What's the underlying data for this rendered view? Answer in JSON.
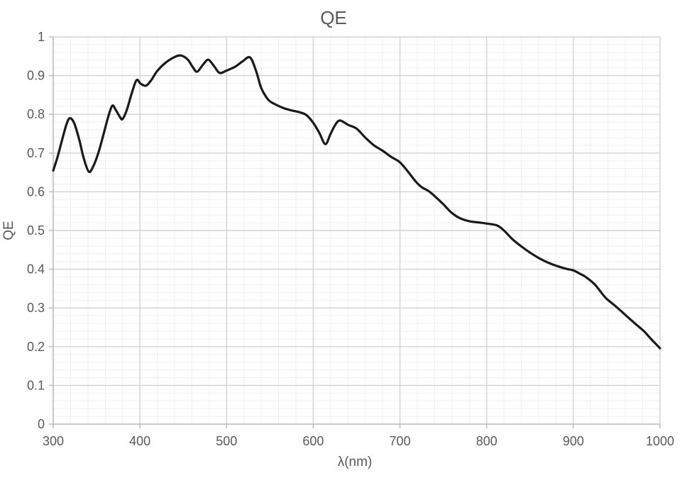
{
  "chart": {
    "title": "QE",
    "x_axis_title": "λ(nm)",
    "y_axis_title": "QE"
  },
  "style": {
    "background": "#ffffff",
    "text_color": "#595959",
    "axis_color": "#bfbfbf",
    "grid_major_color": "#d2d2d2",
    "grid_minor_color": "#efefef",
    "line_color": "#1a1a1a",
    "line_width": 3.2
  },
  "chart_data": {
    "type": "line",
    "title": "QE",
    "xlabel": "λ(nm)",
    "ylabel": "QE",
    "xlim": [
      300,
      1000
    ],
    "ylim": [
      0,
      1
    ],
    "x_major_step": 100,
    "x_minor_step": 20,
    "y_major_step": 0.1,
    "y_minor_step": 0.02,
    "grid": "major+minor",
    "legend": "none",
    "x_tick_labels": [
      "300",
      "400",
      "500",
      "600",
      "700",
      "800",
      "900",
      "1000"
    ],
    "y_tick_labels": [
      "0",
      "0.1",
      "0.2",
      "0.3",
      "0.4",
      "0.5",
      "0.6",
      "0.7",
      "0.8",
      "0.9",
      "1"
    ],
    "series": [
      {
        "name": "QE",
        "color": "#1a1a1a",
        "points": [
          [
            300,
            0.655
          ],
          [
            305,
            0.69
          ],
          [
            310,
            0.732
          ],
          [
            315,
            0.772
          ],
          [
            319,
            0.79
          ],
          [
            324,
            0.778
          ],
          [
            330,
            0.735
          ],
          [
            335,
            0.688
          ],
          [
            341,
            0.652
          ],
          [
            346,
            0.665
          ],
          [
            352,
            0.7
          ],
          [
            358,
            0.748
          ],
          [
            363,
            0.79
          ],
          [
            368,
            0.822
          ],
          [
            372,
            0.812
          ],
          [
            377,
            0.793
          ],
          [
            380,
            0.788
          ],
          [
            385,
            0.812
          ],
          [
            390,
            0.85
          ],
          [
            396,
            0.888
          ],
          [
            401,
            0.879
          ],
          [
            407,
            0.874
          ],
          [
            413,
            0.888
          ],
          [
            420,
            0.912
          ],
          [
            430,
            0.934
          ],
          [
            440,
            0.948
          ],
          [
            447,
            0.952
          ],
          [
            455,
            0.942
          ],
          [
            461,
            0.922
          ],
          [
            466,
            0.91
          ],
          [
            473,
            0.929
          ],
          [
            479,
            0.941
          ],
          [
            486,
            0.923
          ],
          [
            492,
            0.907
          ],
          [
            500,
            0.913
          ],
          [
            510,
            0.923
          ],
          [
            518,
            0.936
          ],
          [
            527,
            0.947
          ],
          [
            534,
            0.912
          ],
          [
            540,
            0.868
          ],
          [
            548,
            0.838
          ],
          [
            556,
            0.826
          ],
          [
            566,
            0.816
          ],
          [
            575,
            0.81
          ],
          [
            585,
            0.805
          ],
          [
            592,
            0.798
          ],
          [
            600,
            0.778
          ],
          [
            607,
            0.752
          ],
          [
            614,
            0.723
          ],
          [
            620,
            0.75
          ],
          [
            626,
            0.775
          ],
          [
            631,
            0.784
          ],
          [
            640,
            0.773
          ],
          [
            650,
            0.763
          ],
          [
            660,
            0.74
          ],
          [
            670,
            0.72
          ],
          [
            680,
            0.706
          ],
          [
            690,
            0.69
          ],
          [
            700,
            0.676
          ],
          [
            710,
            0.65
          ],
          [
            718,
            0.627
          ],
          [
            725,
            0.612
          ],
          [
            733,
            0.602
          ],
          [
            740,
            0.589
          ],
          [
            750,
            0.568
          ],
          [
            760,
            0.545
          ],
          [
            770,
            0.531
          ],
          [
            780,
            0.524
          ],
          [
            790,
            0.521
          ],
          [
            800,
            0.518
          ],
          [
            812,
            0.513
          ],
          [
            820,
            0.5
          ],
          [
            830,
            0.477
          ],
          [
            840,
            0.459
          ],
          [
            850,
            0.443
          ],
          [
            861,
            0.428
          ],
          [
            872,
            0.416
          ],
          [
            883,
            0.407
          ],
          [
            892,
            0.401
          ],
          [
            900,
            0.397
          ],
          [
            908,
            0.388
          ],
          [
            915,
            0.379
          ],
          [
            925,
            0.36
          ],
          [
            937,
            0.327
          ],
          [
            948,
            0.306
          ],
          [
            959,
            0.284
          ],
          [
            970,
            0.262
          ],
          [
            981,
            0.241
          ],
          [
            990,
            0.219
          ],
          [
            1000,
            0.196
          ]
        ]
      }
    ]
  }
}
